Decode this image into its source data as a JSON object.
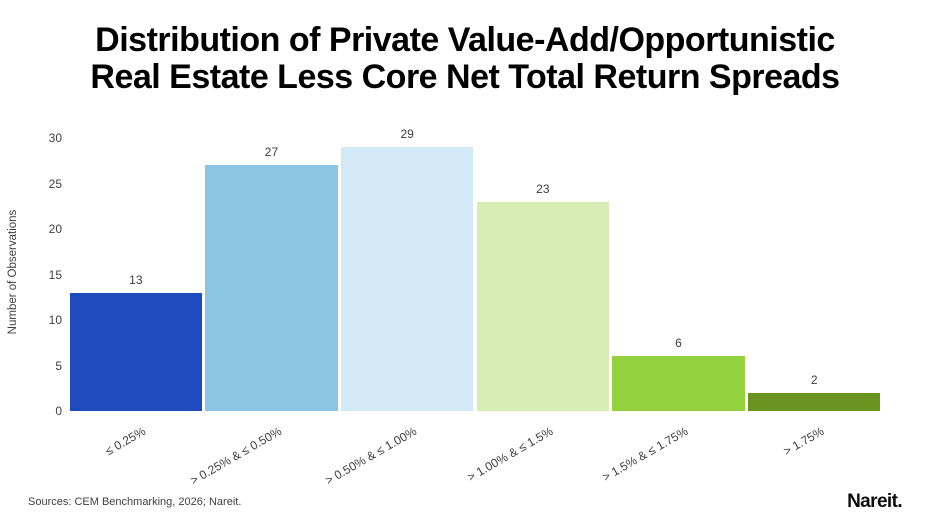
{
  "header": {
    "title_lines": [
      "Distribution of Private Value-Add/Opportunistic",
      "Real Estate Less Core Net Total Return Spreads"
    ]
  },
  "chart_data": {
    "type": "bar",
    "title": "Distribution of Private Value-Add/Opportunistic Real Estate Less Core Net Total Return Spreads",
    "categories": [
      "≤ 0.25%",
      "> 0.25% & ≤ 0.50%",
      "> 0.50% & ≤ 1.00%",
      "> 1.00% & ≤ 1.5%",
      "> 1.5% & ≤ 1.75%",
      "> 1.75%"
    ],
    "values": [
      13,
      27,
      29,
      23,
      6,
      2
    ],
    "bar_colors": [
      "#1E4BBE",
      "#8AC6E4",
      "#D3E9F6",
      "#D7EDB4",
      "#93D13F",
      "#68941F"
    ],
    "xlabel": "",
    "ylabel": "Number of Observations",
    "yticks": [
      0,
      5,
      10,
      15,
      20,
      25,
      30
    ],
    "ylim": [
      0,
      30
    ],
    "grid": false,
    "legend": "none",
    "value_labels": true
  },
  "footer": {
    "sources": "Sources: CEM Benchmarking, 2026; Nareit."
  },
  "branding": {
    "logo_text": "Nareit."
  }
}
